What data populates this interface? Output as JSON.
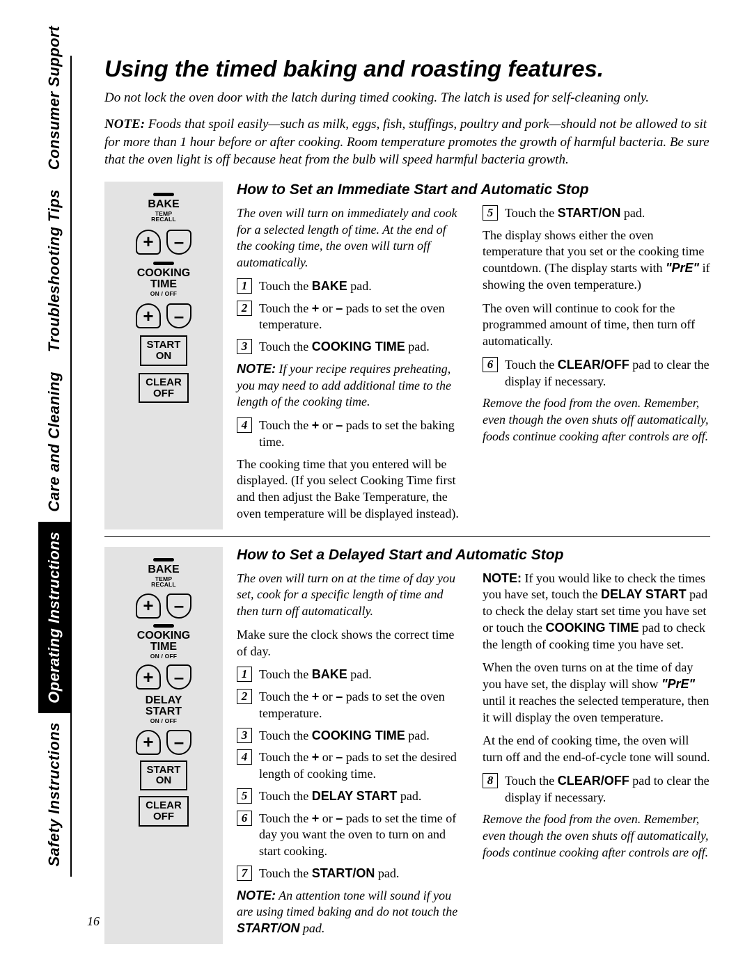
{
  "page_number": "16",
  "sidebar_tabs": [
    {
      "label": "Consumer Support",
      "active": false
    },
    {
      "label": "Troubleshooting Tips",
      "active": false
    },
    {
      "label": "Care and Cleaning",
      "active": false
    },
    {
      "label": "Operating Instructions",
      "active": true
    },
    {
      "label": "Safety Instructions",
      "active": false
    }
  ],
  "title": "Using the timed baking and roasting features.",
  "intro_line": "Do not lock the oven door with the latch during timed cooking. The latch is used for self-cleaning only.",
  "intro_note_label": "NOTE:",
  "intro_note_body": "  Foods that spoil easily—such as milk, eggs, fish, stuffings, poultry and pork—should not be allowed to sit for more than 1 hour before or after cooking. Room temperature promotes the growth of harmful bacteria. Be sure that the oven light is off because heat from the bulb will speed harmful bacteria growth.",
  "section1": {
    "heading": "How to Set an Immediate Start and Automatic Stop",
    "panel": {
      "bake": {
        "big": "BAKE",
        "sm": "TEMP\nRECALL"
      },
      "cooking": {
        "big": "COOKING\nTIME",
        "sm": "ON / OFF"
      },
      "start": "START\nON",
      "clear": "CLEAR\nOFF"
    },
    "lead": "The oven will turn on immediately and cook for a selected length of time. At the end of the cooking time, the oven will turn off automatically.",
    "steps_left": [
      {
        "n": "1",
        "t_pre": "Touch the ",
        "t_b": "BAKE",
        "t_post": " pad."
      },
      {
        "n": "2",
        "t_pre": "Touch the ",
        "t_b": "+",
        "t_mid": " or ",
        "t_b2": "–",
        "t_post": " pads to set the oven temperature."
      },
      {
        "n": "3",
        "t_pre": "Touch the ",
        "t_b": "COOKING TIME",
        "t_post": "  pad."
      }
    ],
    "note_mid_label": "NOTE:",
    "note_mid": " If your recipe requires preheating, you may need to add additional time to the length of the cooking time.",
    "step4": {
      "n": "4",
      "t_pre": "Touch the ",
      "t_b": "+",
      "t_mid": " or ",
      "t_b2": "–",
      "t_post": " pads to set the baking time."
    },
    "para_after4": "The cooking time that you entered will be displayed. (If you select Cooking Time first and then adjust the Bake Temperature, the oven temperature will be displayed instead).",
    "step5": {
      "n": "5",
      "t_pre": "Touch the ",
      "t_b": "START/ON",
      "t_post": "  pad."
    },
    "para_r1_a": "The display shows either the oven temperature that you set or the cooking time countdown.  (The display starts with ",
    "para_r1_q": "\"PrE\"",
    "para_r1_b": " if showing the oven temperature.)",
    "para_r2": "The oven will continue to cook for the programmed amount of time, then turn off automatically.",
    "step6": {
      "n": "6",
      "t_pre": "Touch the ",
      "t_b": "CLEAR/OFF",
      "t_post": " pad to clear the display if necessary."
    },
    "closing": "Remove the food from the oven. Remember, even though the oven shuts off automatically, foods continue cooking after controls are off."
  },
  "section2": {
    "heading": "How to Set a Delayed Start and Automatic Stop",
    "panel": {
      "bake": {
        "big": "BAKE",
        "sm": "TEMP\nRECALL"
      },
      "cooking": {
        "big": "COOKING\nTIME",
        "sm": "ON / OFF"
      },
      "delay": {
        "big": "DELAY\nSTART",
        "sm": "ON / OFF"
      },
      "start": "START\nON",
      "clear": "CLEAR\nOFF"
    },
    "lead": "The oven will turn on at the time of day you set, cook for a specific length of time and then turn off automatically.",
    "clock_line": "Make sure the clock shows the correct time of day.",
    "steps": [
      {
        "n": "1",
        "t_pre": "Touch the ",
        "t_b": "BAKE",
        "t_post": " pad."
      },
      {
        "n": "2",
        "t_pre": "Touch the ",
        "t_b": "+",
        "t_mid": " or ",
        "t_b2": "–",
        "t_post": " pads to set the oven temperature."
      },
      {
        "n": "3",
        "t_pre": "Touch the ",
        "t_b": "COOKING TIME",
        "t_post": "  pad."
      },
      {
        "n": "4",
        "t_pre": "Touch the ",
        "t_b": "+",
        "t_mid": " or ",
        "t_b2": "–",
        "t_post": " pads to set the desired length of cooking time."
      },
      {
        "n": "5",
        "t_pre": "Touch the ",
        "t_b": "DELAY START",
        "t_post": " pad."
      },
      {
        "n": "6",
        "t_pre": "Touch the ",
        "t_b": "+",
        "t_mid": " or ",
        "t_b2": "–",
        "t_post": " pads to set the time of day you want the oven to turn on and start cooking."
      },
      {
        "n": "7",
        "t_pre": "Touch the ",
        "t_b": "START/ON",
        "t_post": "  pad."
      }
    ],
    "note_bottom_label": "NOTE:",
    "note_bottom_a": " An attention tone will sound if you are using timed baking and do not touch the ",
    "note_bottom_b": "START/ON",
    "note_bottom_c": " pad.",
    "right_note_label": "NOTE:",
    "right_note_a": " If you would like to check the times you have set, touch the ",
    "right_note_b1": "DELAY START",
    "right_note_c": " pad to check the delay start set time you have set or touch the ",
    "right_note_b2": "COOKING TIME",
    "right_note_d": " pad to check the length of cooking time you have set.",
    "para_r2_a": "When the oven turns on at the time of day you have set, the display will show ",
    "para_r2_q": "\"PrE\"",
    "para_r2_b": " until it reaches the selected temperature, then it will display the oven temperature.",
    "para_r3": "At the end of cooking time, the oven will turn off and the end-of-cycle tone will sound.",
    "step8": {
      "n": "8",
      "t_pre": "Touch the ",
      "t_b": "CLEAR/OFF",
      "t_post": " pad to clear the display if necessary."
    },
    "closing": "Remove the food from the oven. Remember, even though the oven shuts off automatically, foods continue cooking after controls are off."
  }
}
